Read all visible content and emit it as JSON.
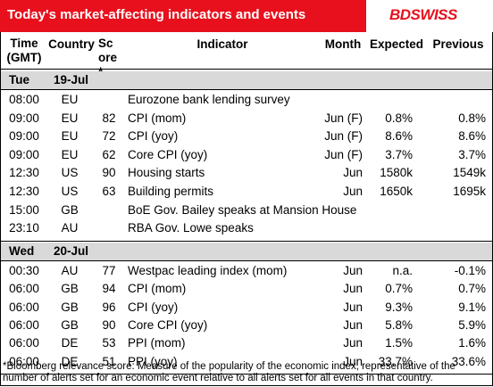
{
  "header": {
    "title": "Today's market-affecting indicators and events",
    "logo": "BDSWISS"
  },
  "columns": [
    "Time (GMT)",
    "Country",
    "Score*",
    "Indicator",
    "Month",
    "Expected",
    "Previous"
  ],
  "sections": [
    {
      "day": "Tue",
      "date": "19-Jul",
      "rows": [
        [
          "08:00",
          "EU",
          null,
          "Eurozone bank lending survey",
          null,
          null,
          null
        ],
        [
          "09:00",
          "EU",
          "82",
          "CPI (mom)",
          "Jun (F)",
          "0.8%",
          "0.8%"
        ],
        [
          "09:00",
          "EU",
          "72",
          "CPI (yoy)",
          "Jun (F)",
          "8.6%",
          "8.6%"
        ],
        [
          "09:00",
          "EU",
          "62",
          "Core CPI (yoy)",
          "Jun (F)",
          "3.7%",
          "3.7%"
        ],
        [
          "12:30",
          "US",
          "90",
          "Housing starts",
          "Jun",
          "1580k",
          "1549k"
        ],
        [
          "12:30",
          "US",
          "63",
          "Building permits",
          "Jun",
          "1650k",
          "1695k"
        ],
        [
          "15:00",
          "GB",
          null,
          "BoE Gov. Bailey speaks at Mansion House",
          null,
          null,
          null
        ],
        [
          "23:10",
          "AU",
          null,
          "RBA Gov. Lowe speaks",
          null,
          null,
          null
        ]
      ]
    },
    {
      "day": "Wed",
      "date": "20-Jul",
      "rows": [
        [
          "00:30",
          "AU",
          "77",
          "Westpac leading index (mom)",
          "Jun",
          "n.a.",
          "-0.1%"
        ],
        [
          "06:00",
          "GB",
          "94",
          "CPI (mom)",
          "Jun",
          "0.7%",
          "0.7%"
        ],
        [
          "06:00",
          "GB",
          "96",
          "CPI (yoy)",
          "Jun",
          "9.3%",
          "9.1%"
        ],
        [
          "06:00",
          "GB",
          "90",
          "Core CPI (yoy)",
          "Jun",
          "5.8%",
          "5.9%"
        ],
        [
          "06:00",
          "DE",
          "53",
          "PPI (mom)",
          "Jun",
          "1.5%",
          "1.6%"
        ],
        [
          "06:00",
          "DE",
          "51",
          "PPI (yoy)",
          "Jun",
          "33.7%",
          "33.6%"
        ]
      ]
    }
  ],
  "footnote": "*Bloomberg relevance score: Measure of the popularity of the economic index, representative of the number of alerts set for an economic event relative to all alerts set for all events in that country."
}
